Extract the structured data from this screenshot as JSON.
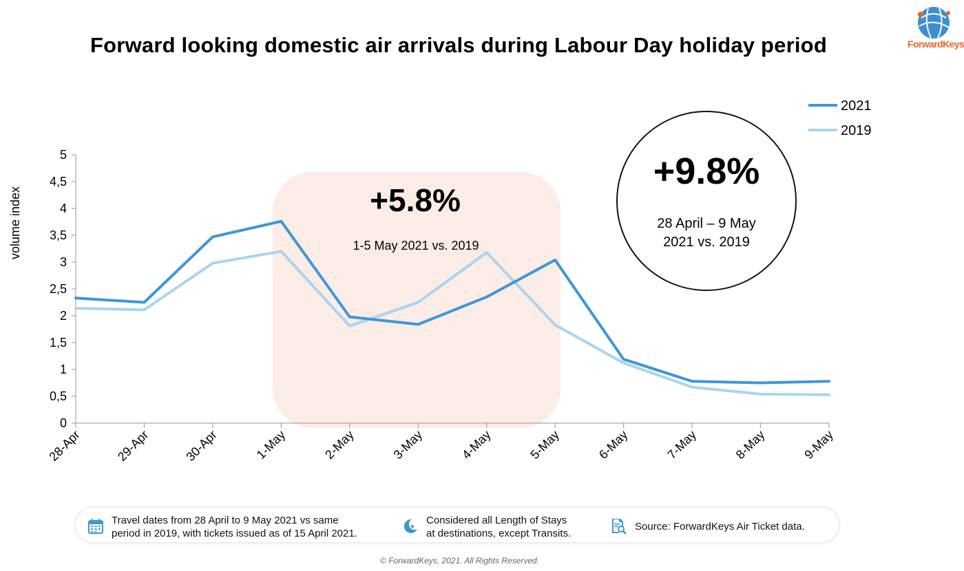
{
  "header": {
    "title": "Forward looking domestic air arrivals during Labour Day holiday period"
  },
  "logo": {
    "text": "ForwardKeys",
    "icon": "globe-logo-icon"
  },
  "chart_data": {
    "type": "line",
    "ylabel": "volume index",
    "xlabel": "",
    "ylim": [
      0,
      5
    ],
    "yticks": [
      "0",
      "0,5",
      "1",
      "1,5",
      "2",
      "2,5",
      "3",
      "3,5",
      "4",
      "4,5",
      "5"
    ],
    "categories": [
      "28-Apr",
      "29-Apr",
      "30-Apr",
      "1-May",
      "2-May",
      "3-May",
      "4-May",
      "5-May",
      "6-May",
      "7-May",
      "8-May",
      "9-May"
    ],
    "series": [
      {
        "name": "2021",
        "color": "#3d97d6",
        "values": [
          2.33,
          2.25,
          3.47,
          3.76,
          1.98,
          1.84,
          2.35,
          3.04,
          1.19,
          0.78,
          0.75,
          0.78
        ]
      },
      {
        "name": "2019",
        "color": "#a9d4f0",
        "values": [
          2.14,
          2.11,
          2.98,
          3.2,
          1.81,
          2.25,
          3.18,
          1.83,
          1.12,
          0.67,
          0.54,
          0.53
        ]
      }
    ],
    "legend_position": "top-right",
    "grid": false,
    "highlight": {
      "from": "1-May",
      "to": "5-May",
      "color": "#fcece6",
      "value": "+5.8%",
      "label": "1-5 May 2021 vs. 2019"
    },
    "summary": {
      "value": "+9.8%",
      "line1": "28 April – 9 May",
      "line2": "2021 vs. 2019"
    }
  },
  "footer": {
    "items": [
      {
        "icon": "calendar-icon",
        "line1": "Travel dates from 28 April to 9 May 2021 vs same",
        "line2": "period in 2019, with tickets issued as of 15 April 2021."
      },
      {
        "icon": "moon-icon",
        "line1": "Considered all Length of Stays",
        "line2": "at destinations, except Transits."
      },
      {
        "icon": "document-search-icon",
        "line1": "Source: ForwardKeys Air Ticket data.",
        "line2": ""
      }
    ],
    "copyright": "© ForwardKeys, 2021. All Rights Reserved."
  }
}
